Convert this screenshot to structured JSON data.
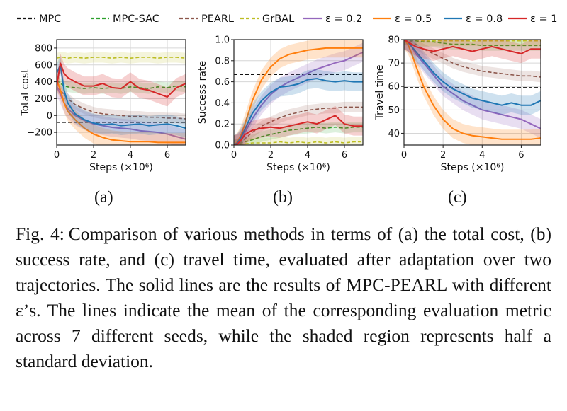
{
  "legend": [
    {
      "name": "MPC",
      "color": "#111111",
      "dash": "dashed"
    },
    {
      "name": "MPC-SAC",
      "color": "#2ca02c",
      "dash": "dashed"
    },
    {
      "name": "PEARL",
      "color": "#8c564b",
      "dash": "dashed"
    },
    {
      "name": "GrBAL",
      "color": "#bcbd22",
      "dash": "dashed"
    },
    {
      "name": "ε = 0.2",
      "color": "#9467bd",
      "dash": "solid"
    },
    {
      "name": "ε = 0.5",
      "color": "#ff7f0e",
      "dash": "solid"
    },
    {
      "name": "ε = 0.8",
      "color": "#1f77b4",
      "dash": "solid"
    },
    {
      "name": "ε = 1",
      "color": "#d62728",
      "dash": "solid"
    }
  ],
  "panel_labels": [
    "(a)",
    "(b)",
    "(c)"
  ],
  "caption": {
    "label": "Fig. 4:",
    "text": "Comparison of various methods in terms of (a) the total cost, (b) success rate, and (c) travel time, evaluated after adaptation over two trajectories. The solid lines are the results of MPC-PEARL with different ε’s. The lines indicate the mean of the corresponding evaluation metric across 7 different seeds, while the shaded region represents half a standard deviation."
  },
  "chart_data": [
    {
      "type": "line",
      "ylabel": "Total cost",
      "xlabel": "Steps (×10⁶)",
      "xlim": [
        0,
        7
      ],
      "ylim": [
        -350,
        900
      ],
      "xticks": [
        0,
        2,
        4,
        6
      ],
      "yticks": [
        -200,
        0,
        200,
        400,
        600,
        800
      ],
      "ytick_labels": [
        "−200",
        "0",
        "200",
        "400",
        "600",
        "800"
      ],
      "grid": true,
      "x": [
        0,
        0.2,
        0.4,
        0.6,
        1.0,
        1.5,
        2.0,
        2.5,
        3.0,
        3.5,
        4.0,
        4.5,
        5.0,
        5.5,
        6.0,
        6.5,
        7.0
      ],
      "series": [
        {
          "name": "MPC",
          "values": [
            -80,
            -80,
            -80,
            -80,
            -80,
            -80,
            -80,
            -80,
            -80,
            -80,
            -80,
            -80,
            -80,
            -80,
            -80,
            -80,
            -80
          ]
        },
        {
          "name": "MPC-SAC",
          "values": [
            420,
            380,
            350,
            340,
            330,
            320,
            330,
            320,
            330,
            320,
            340,
            330,
            320,
            340,
            330,
            350,
            340
          ]
        },
        {
          "name": "PEARL",
          "values": [
            330,
            300,
            250,
            200,
            130,
            80,
            40,
            20,
            10,
            0,
            -10,
            -10,
            -20,
            -20,
            -30,
            -30,
            -40
          ]
        },
        {
          "name": "GrBAL",
          "values": [
            680,
            690,
            690,
            680,
            690,
            680,
            690,
            690,
            680,
            690,
            680,
            690,
            690,
            680,
            690,
            690,
            680
          ]
        },
        {
          "name": "ε = 0.2",
          "values": [
            350,
            250,
            150,
            80,
            0,
            -60,
            -100,
            -120,
            -140,
            -150,
            -160,
            -180,
            -190,
            -200,
            -220,
            -250,
            -280
          ]
        },
        {
          "name": "ε = 0.5",
          "values": [
            420,
            300,
            150,
            50,
            -50,
            -150,
            -220,
            -260,
            -290,
            -300,
            -310,
            -310,
            -310,
            -320,
            -320,
            -320,
            -320
          ]
        },
        {
          "name": "ε = 0.8",
          "values": [
            500,
            600,
            300,
            150,
            20,
            -50,
            -90,
            -110,
            -100,
            -120,
            -110,
            -100,
            -120,
            -110,
            -100,
            -120,
            -150
          ]
        },
        {
          "name": "ε = 1",
          "values": [
            350,
            620,
            500,
            450,
            400,
            350,
            350,
            380,
            330,
            320,
            400,
            320,
            300,
            260,
            220,
            330,
            380
          ]
        }
      ]
    },
    {
      "type": "line",
      "ylabel": "Success rate",
      "xlabel": "Steps (×10⁶)",
      "xlim": [
        0,
        7
      ],
      "ylim": [
        0,
        1.0
      ],
      "xticks": [
        0,
        2,
        4,
        6
      ],
      "yticks": [
        0.0,
        0.2,
        0.4,
        0.6,
        0.8,
        1.0
      ],
      "ytick_labels": [
        "0.0",
        "0.2",
        "0.4",
        "0.6",
        "0.8",
        "1.0"
      ],
      "grid": true,
      "x": [
        0,
        0.2,
        0.4,
        0.6,
        1.0,
        1.5,
        2.0,
        2.5,
        3.0,
        3.5,
        4.0,
        4.5,
        5.0,
        5.5,
        6.0,
        6.5,
        7.0
      ],
      "series": [
        {
          "name": "MPC",
          "values": [
            0.67,
            0.67,
            0.67,
            0.67,
            0.67,
            0.67,
            0.67,
            0.67,
            0.67,
            0.67,
            0.67,
            0.67,
            0.67,
            0.67,
            0.67,
            0.67,
            0.67
          ]
        },
        {
          "name": "MPC-SAC",
          "values": [
            0,
            0.01,
            0.02,
            0.03,
            0.05,
            0.08,
            0.1,
            0.12,
            0.14,
            0.15,
            0.16,
            0.17,
            0.16,
            0.17,
            0.16,
            0.17,
            0.17
          ]
        },
        {
          "name": "PEARL",
          "values": [
            0,
            0.01,
            0.03,
            0.06,
            0.12,
            0.18,
            0.22,
            0.26,
            0.29,
            0.31,
            0.33,
            0.34,
            0.35,
            0.35,
            0.36,
            0.36,
            0.36
          ]
        },
        {
          "name": "GrBAL",
          "values": [
            0,
            0,
            0.01,
            0.01,
            0.02,
            0.02,
            0.02,
            0.03,
            0.02,
            0.03,
            0.02,
            0.03,
            0.02,
            0.03,
            0.02,
            0.03,
            0.03
          ]
        },
        {
          "name": "ε = 0.2",
          "values": [
            0,
            0.02,
            0.06,
            0.12,
            0.25,
            0.38,
            0.48,
            0.55,
            0.6,
            0.64,
            0.68,
            0.72,
            0.75,
            0.78,
            0.8,
            0.84,
            0.88
          ]
        },
        {
          "name": "ε = 0.5",
          "values": [
            0,
            0.03,
            0.1,
            0.2,
            0.42,
            0.62,
            0.74,
            0.82,
            0.86,
            0.88,
            0.9,
            0.91,
            0.92,
            0.92,
            0.92,
            0.92,
            0.92
          ]
        },
        {
          "name": "ε = 0.8",
          "values": [
            0,
            0.02,
            0.08,
            0.15,
            0.3,
            0.42,
            0.5,
            0.55,
            0.56,
            0.58,
            0.62,
            0.63,
            0.61,
            0.6,
            0.61,
            0.6,
            0.6
          ]
        },
        {
          "name": "ε = 1",
          "values": [
            0,
            0.01,
            0.05,
            0.1,
            0.14,
            0.16,
            0.17,
            0.16,
            0.18,
            0.2,
            0.22,
            0.2,
            0.24,
            0.28,
            0.2,
            0.18,
            0.18
          ]
        }
      ]
    },
    {
      "type": "line",
      "ylabel": "Travel time",
      "xlabel": "Steps (×10⁶)",
      "xlim": [
        0,
        7
      ],
      "ylim": [
        35,
        80
      ],
      "xticks": [
        0,
        2,
        4,
        6
      ],
      "yticks": [
        40,
        50,
        60,
        70,
        80
      ],
      "ytick_labels": [
        "40",
        "50",
        "60",
        "70",
        "80"
      ],
      "grid": true,
      "x": [
        0,
        0.2,
        0.4,
        0.6,
        1.0,
        1.5,
        2.0,
        2.5,
        3.0,
        3.5,
        4.0,
        4.5,
        5.0,
        5.5,
        6.0,
        6.5,
        7.0
      ],
      "series": [
        {
          "name": "MPC",
          "values": [
            59.5,
            59.5,
            59.5,
            59.5,
            59.5,
            59.5,
            59.5,
            59.5,
            59.5,
            59.5,
            59.5,
            59.5,
            59.5,
            59.5,
            59.5,
            59.5,
            59.5
          ]
        },
        {
          "name": "MPC-SAC",
          "values": [
            80,
            80,
            79.5,
            79.5,
            79,
            79,
            78.5,
            78,
            78,
            78,
            77.5,
            77.5,
            77.5,
            77.5,
            77.5,
            77.5,
            77.5
          ]
        },
        {
          "name": "PEARL",
          "values": [
            80,
            79.5,
            79,
            78,
            76,
            74,
            72,
            70,
            68.5,
            67.5,
            66.5,
            66,
            65.5,
            65,
            64.5,
            64.5,
            64
          ]
        },
        {
          "name": "GrBAL",
          "values": [
            80,
            80,
            80,
            80,
            79.5,
            79.5,
            79.5,
            79.5,
            79.5,
            79.5,
            79.5,
            79.5,
            79.5,
            79.5,
            79.5,
            79.5,
            79.5
          ]
        },
        {
          "name": "ε = 0.2",
          "values": [
            80,
            79,
            77,
            74,
            70,
            65,
            60,
            57,
            54,
            52,
            50,
            49,
            48,
            47,
            46,
            44,
            42
          ]
        },
        {
          "name": "ε = 0.5",
          "values": [
            80,
            78,
            74,
            69,
            60,
            52,
            46,
            42,
            40,
            39,
            38.5,
            38,
            37.5,
            37.5,
            37.5,
            37.5,
            38
          ]
        },
        {
          "name": "ε = 0.8",
          "values": [
            80,
            79,
            77,
            75,
            71,
            66,
            62,
            59,
            57,
            55,
            54,
            53,
            52,
            53,
            52,
            52,
            54
          ]
        },
        {
          "name": "ε = 1",
          "values": [
            80,
            79,
            78,
            77,
            76,
            75,
            76,
            77,
            76,
            75,
            76,
            77,
            76,
            75,
            74,
            76,
            76
          ]
        }
      ]
    }
  ]
}
